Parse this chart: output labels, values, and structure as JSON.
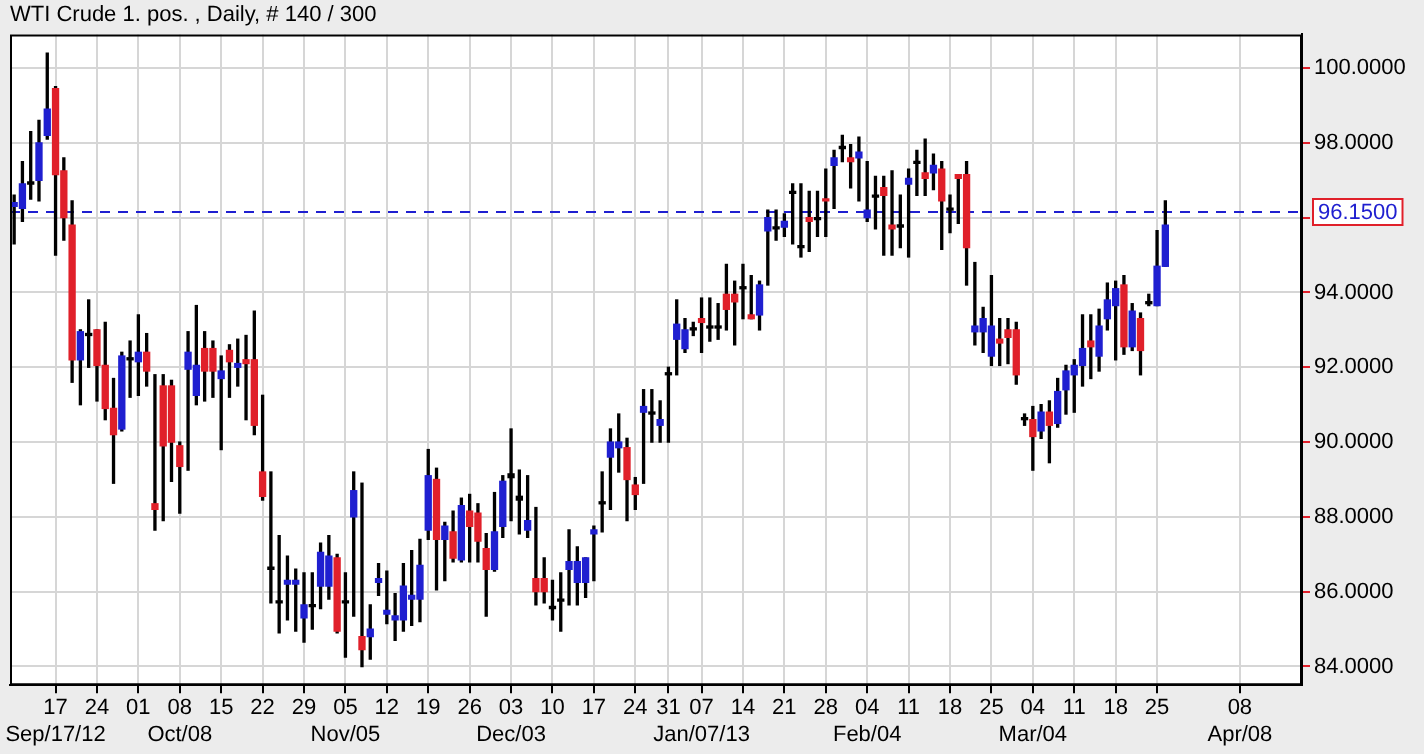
{
  "chart_data": {
    "type": "candlestick",
    "title": "WTI Crude 1. pos. , Daily, # 140 / 300",
    "categories": [
      null,
      null,
      null,
      null,
      null,
      "17\nSep/17/12",
      null,
      null,
      null,
      null,
      "24",
      null,
      null,
      null,
      null,
      "01",
      null,
      null,
      null,
      null,
      "08\nOct/08",
      null,
      null,
      null,
      null,
      "15",
      null,
      null,
      null,
      null,
      "22",
      null,
      null,
      null,
      null,
      "29",
      null,
      null,
      null,
      null,
      "05\nNov/05",
      null,
      null,
      null,
      null,
      "12",
      null,
      null,
      null,
      null,
      "19",
      null,
      null,
      null,
      null,
      "26",
      null,
      null,
      null,
      null,
      "03\nDec/03",
      null,
      null,
      null,
      null,
      "10",
      null,
      null,
      null,
      null,
      "17",
      null,
      null,
      null,
      null,
      "24",
      null,
      null,
      null,
      "31",
      null,
      null,
      null,
      "07\nJan/07/13",
      null,
      null,
      null,
      null,
      "14",
      null,
      null,
      null,
      null,
      "21",
      null,
      null,
      null,
      null,
      "28",
      null,
      null,
      null,
      null,
      "04\nFeb/04",
      null,
      null,
      null,
      null,
      "11",
      null,
      null,
      null,
      null,
      "18",
      null,
      null,
      null,
      null,
      "25",
      null,
      null,
      null,
      null,
      "04\nMar/04",
      null,
      null,
      null,
      null,
      "11",
      null,
      null,
      null,
      null,
      "18",
      null,
      null,
      null,
      null,
      "25",
      null,
      null,
      null,
      null,
      null,
      null,
      null,
      null,
      null,
      "08\nApr/08",
      null,
      null,
      null,
      null,
      null,
      null,
      null
    ],
    "ohlc": [
      [
        96.3,
        96.6,
        95.3,
        96.4
      ],
      [
        96.25,
        97.5,
        95.9,
        96.9
      ],
      [
        96.9,
        98.3,
        96.5,
        96.95
      ],
      [
        97.0,
        98.6,
        96.45,
        98.0
      ],
      [
        98.2,
        100.4,
        98.1,
        98.9
      ],
      [
        99.45,
        99.5,
        95.0,
        97.15
      ],
      [
        97.25,
        97.6,
        95.4,
        96.0
      ],
      [
        95.8,
        96.45,
        91.6,
        92.2
      ],
      [
        92.2,
        93.0,
        91.0,
        92.95
      ],
      [
        92.85,
        93.8,
        92.0,
        92.9
      ],
      [
        93.0,
        93.0,
        91.1,
        92.05
      ],
      [
        92.05,
        93.2,
        90.6,
        90.9
      ],
      [
        90.9,
        91.7,
        88.9,
        90.2
      ],
      [
        90.35,
        92.4,
        90.3,
        92.3
      ],
      [
        92.2,
        92.7,
        91.2,
        92.25
      ],
      [
        92.15,
        93.4,
        91.25,
        92.4
      ],
      [
        92.4,
        92.9,
        91.5,
        91.9
      ],
      [
        88.35,
        91.8,
        87.65,
        88.2
      ],
      [
        91.5,
        91.8,
        87.9,
        89.9
      ],
      [
        91.5,
        91.65,
        88.95,
        90.0
      ],
      [
        89.9,
        90.0,
        88.1,
        89.35
      ],
      [
        91.95,
        92.95,
        89.25,
        92.4
      ],
      [
        91.25,
        93.65,
        91.0,
        92.05
      ],
      [
        92.5,
        92.95,
        91.1,
        91.9
      ],
      [
        92.5,
        92.7,
        91.2,
        91.9
      ],
      [
        91.7,
        92.3,
        89.8,
        91.9
      ],
      [
        92.45,
        92.6,
        91.2,
        92.15
      ],
      [
        92.0,
        92.75,
        91.5,
        92.1
      ],
      [
        92.2,
        92.85,
        90.6,
        92.1
      ],
      [
        92.2,
        93.5,
        90.2,
        90.45
      ],
      [
        89.2,
        91.25,
        88.45,
        88.55
      ],
      [
        86.6,
        89.2,
        85.7,
        86.65
      ],
      [
        85.7,
        87.5,
        84.9,
        85.75
      ],
      [
        86.2,
        86.95,
        85.25,
        86.3
      ],
      [
        86.2,
        86.6,
        84.95,
        86.3
      ],
      [
        85.3,
        86.5,
        84.65,
        85.65
      ],
      [
        85.6,
        86.5,
        85.0,
        85.65
      ],
      [
        86.15,
        87.3,
        85.55,
        87.05
      ],
      [
        86.15,
        87.5,
        85.8,
        86.95
      ],
      [
        86.9,
        87.0,
        84.9,
        84.95
      ],
      [
        85.7,
        86.5,
        84.25,
        85.75
      ],
      [
        88.0,
        89.2,
        85.35,
        88.7
      ],
      [
        84.8,
        88.9,
        84.0,
        84.45
      ],
      [
        84.8,
        85.65,
        84.2,
        85.0
      ],
      [
        86.25,
        86.75,
        85.9,
        86.35
      ],
      [
        85.4,
        86.55,
        85.15,
        85.5
      ],
      [
        85.25,
        85.95,
        84.7,
        85.35
      ],
      [
        85.25,
        86.75,
        84.95,
        86.15
      ],
      [
        85.8,
        87.1,
        85.1,
        85.9
      ],
      [
        85.8,
        87.4,
        85.2,
        86.7
      ],
      [
        87.65,
        89.8,
        87.4,
        89.1
      ],
      [
        89.0,
        89.3,
        86.05,
        87.4
      ],
      [
        87.4,
        87.85,
        86.3,
        87.75
      ],
      [
        87.6,
        88.15,
        86.8,
        86.9
      ],
      [
        86.85,
        88.5,
        86.8,
        88.3
      ],
      [
        88.15,
        88.6,
        86.8,
        87.75
      ],
      [
        88.1,
        88.35,
        86.8,
        87.35
      ],
      [
        87.15,
        87.55,
        85.35,
        86.6
      ],
      [
        86.6,
        88.65,
        86.55,
        87.6
      ],
      [
        87.75,
        89.1,
        87.45,
        88.95
      ],
      [
        89.05,
        90.35,
        87.9,
        89.15
      ],
      [
        88.45,
        89.25,
        87.55,
        88.55
      ],
      [
        87.65,
        89.1,
        87.45,
        87.9
      ],
      [
        86.35,
        88.25,
        85.65,
        86.0
      ],
      [
        86.35,
        86.9,
        85.7,
        86.0
      ],
      [
        85.55,
        86.3,
        85.25,
        85.6
      ],
      [
        85.75,
        86.5,
        84.95,
        85.8
      ],
      [
        86.6,
        87.65,
        85.65,
        86.8
      ],
      [
        86.25,
        87.2,
        85.65,
        86.8
      ],
      [
        86.25,
        86.9,
        85.85,
        86.9
      ],
      [
        87.55,
        87.75,
        86.3,
        87.65
      ],
      [
        88.35,
        89.2,
        87.6,
        88.4
      ],
      [
        89.6,
        90.35,
        88.2,
        90.0
      ],
      [
        89.85,
        90.75,
        89.2,
        90.0
      ],
      [
        89.85,
        90.1,
        87.9,
        89.0
      ],
      [
        88.85,
        89.05,
        88.2,
        88.6
      ],
      [
        90.8,
        91.4,
        88.9,
        90.95
      ],
      [
        90.75,
        91.4,
        90.0,
        90.8
      ],
      [
        90.45,
        91.1,
        90.0,
        90.6
      ],
      [
        91.8,
        92.0,
        90.0,
        91.85
      ],
      [
        92.75,
        93.8,
        91.8,
        93.15
      ],
      [
        92.5,
        93.3,
        92.4,
        93.0
      ],
      [
        93.0,
        93.2,
        92.85,
        93.05
      ],
      [
        93.3,
        93.85,
        92.4,
        93.2
      ],
      [
        93.05,
        93.85,
        92.7,
        93.1
      ],
      [
        93.05,
        93.7,
        92.75,
        93.1
      ],
      [
        93.95,
        94.75,
        93.0,
        93.55
      ],
      [
        93.95,
        94.3,
        92.6,
        93.75
      ],
      [
        94.1,
        94.75,
        93.3,
        94.15
      ],
      [
        93.4,
        94.45,
        93.3,
        93.3
      ],
      [
        93.4,
        94.3,
        93.0,
        94.2
      ],
      [
        95.65,
        96.2,
        94.2,
        96.0
      ],
      [
        95.7,
        96.2,
        95.4,
        95.75
      ],
      [
        95.75,
        96.1,
        95.5,
        95.9
      ],
      [
        96.65,
        96.9,
        95.3,
        96.7
      ],
      [
        95.2,
        96.9,
        94.95,
        95.25
      ],
      [
        96.0,
        96.7,
        95.1,
        95.9
      ],
      [
        95.95,
        96.7,
        95.5,
        96.0
      ],
      [
        96.5,
        97.3,
        95.5,
        96.45
      ],
      [
        97.4,
        97.8,
        96.25,
        97.6
      ],
      [
        97.85,
        98.2,
        97.5,
        97.9
      ],
      [
        97.6,
        97.95,
        96.8,
        97.5
      ],
      [
        97.6,
        98.15,
        96.45,
        97.75
      ],
      [
        96.0,
        97.5,
        95.9,
        96.2
      ],
      [
        96.55,
        97.1,
        95.7,
        96.6
      ],
      [
        96.8,
        97.1,
        95.0,
        96.6
      ],
      [
        95.8,
        97.25,
        95.0,
        95.7
      ],
      [
        95.75,
        96.6,
        95.2,
        95.8
      ],
      [
        96.9,
        97.3,
        94.95,
        97.05
      ],
      [
        97.45,
        97.8,
        96.6,
        97.5
      ],
      [
        97.2,
        98.1,
        96.6,
        97.05
      ],
      [
        97.2,
        97.7,
        96.75,
        97.4
      ],
      [
        97.3,
        97.5,
        95.15,
        96.45
      ],
      [
        96.2,
        96.6,
        95.6,
        96.25
      ],
      [
        97.15,
        97.15,
        95.85,
        97.05
      ],
      [
        97.15,
        97.5,
        94.2,
        95.2
      ],
      [
        92.95,
        94.8,
        92.6,
        93.1
      ],
      [
        92.95,
        93.6,
        92.4,
        93.3
      ],
      [
        92.3,
        94.45,
        92.05,
        93.1
      ],
      [
        92.75,
        93.3,
        92.05,
        92.65
      ],
      [
        93.0,
        93.3,
        92.1,
        92.8
      ],
      [
        93.0,
        93.2,
        91.55,
        91.8
      ],
      [
        90.6,
        90.75,
        90.45,
        90.6
      ],
      [
        90.6,
        90.95,
        89.25,
        90.15
      ],
      [
        90.3,
        91.0,
        90.1,
        90.8
      ],
      [
        90.8,
        91.1,
        89.45,
        90.45
      ],
      [
        90.5,
        91.7,
        90.4,
        91.35
      ],
      [
        91.4,
        92.05,
        90.75,
        91.9
      ],
      [
        91.8,
        92.2,
        90.8,
        92.05
      ],
      [
        92.05,
        93.4,
        91.5,
        92.5
      ],
      [
        92.7,
        93.4,
        91.7,
        92.55
      ],
      [
        92.3,
        93.55,
        91.9,
        93.1
      ],
      [
        93.3,
        94.25,
        93.0,
        93.8
      ],
      [
        93.65,
        94.3,
        92.2,
        94.1
      ],
      [
        94.2,
        94.45,
        92.35,
        92.55
      ],
      [
        92.55,
        93.7,
        92.45,
        93.5
      ],
      [
        93.3,
        93.45,
        91.8,
        92.45
      ],
      [
        93.7,
        93.95,
        93.65,
        93.75
      ],
      [
        93.65,
        95.65,
        93.65,
        94.7
      ],
      [
        94.7,
        96.45,
        94.7,
        95.8
      ],
      null,
      null,
      null,
      null,
      null,
      null,
      null,
      null,
      null,
      null,
      null,
      null,
      null,
      null,
      null,
      null
    ],
    "colors": [
      "#1f1fd0",
      "#1f1fd0",
      "#000000",
      "#1f1fd0",
      "#1f1fd0",
      "#e0202a",
      "#e0202a",
      "#e0202a",
      "#1f1fd0",
      "#000000",
      "#e0202a",
      "#e0202a",
      "#e0202a",
      "#1f1fd0",
      "#000000",
      "#1f1fd0",
      "#e0202a",
      "#e0202a",
      "#e0202a",
      "#e0202a",
      "#e0202a",
      "#1f1fd0",
      "#1f1fd0",
      "#e0202a",
      "#e0202a",
      "#1f1fd0",
      "#e0202a",
      "#1f1fd0",
      "#e0202a",
      "#e0202a",
      "#e0202a",
      "#000000",
      "#000000",
      "#1f1fd0",
      "#1f1fd0",
      "#1f1fd0",
      "#000000",
      "#1f1fd0",
      "#1f1fd0",
      "#e0202a",
      "#000000",
      "#1f1fd0",
      "#e0202a",
      "#1f1fd0",
      "#1f1fd0",
      "#1f1fd0",
      "#1f1fd0",
      "#1f1fd0",
      "#1f1fd0",
      "#1f1fd0",
      "#1f1fd0",
      "#e0202a",
      "#1f1fd0",
      "#e0202a",
      "#1f1fd0",
      "#e0202a",
      "#e0202a",
      "#e0202a",
      "#1f1fd0",
      "#1f1fd0",
      "#000000",
      "#000000",
      "#1f1fd0",
      "#e0202a",
      "#e0202a",
      "#000000",
      "#000000",
      "#1f1fd0",
      "#1f1fd0",
      "#1f1fd0",
      "#1f1fd0",
      "#000000",
      "#1f1fd0",
      "#1f1fd0",
      "#e0202a",
      "#e0202a",
      "#1f1fd0",
      "#000000",
      "#1f1fd0",
      "#000000",
      "#1f1fd0",
      "#1f1fd0",
      "#000000",
      "#e0202a",
      "#000000",
      "#000000",
      "#e0202a",
      "#e0202a",
      "#000000",
      "#e0202a",
      "#1f1fd0",
      "#1f1fd0",
      "#000000",
      "#1f1fd0",
      "#000000",
      "#000000",
      "#e0202a",
      "#000000",
      "#e0202a",
      "#1f1fd0",
      "#000000",
      "#e0202a",
      "#1f1fd0",
      "#1f1fd0",
      "#000000",
      "#e0202a",
      "#e0202a",
      "#000000",
      "#1f1fd0",
      "#000000",
      "#e0202a",
      "#1f1fd0",
      "#e0202a",
      "#000000",
      "#e0202a",
      "#e0202a",
      "#1f1fd0",
      "#1f1fd0",
      "#1f1fd0",
      "#e0202a",
      "#e0202a",
      "#e0202a",
      "#000000",
      "#e0202a",
      "#1f1fd0",
      "#e0202a",
      "#1f1fd0",
      "#1f1fd0",
      "#1f1fd0",
      "#1f1fd0",
      "#e0202a",
      "#1f1fd0",
      "#1f1fd0",
      "#1f1fd0",
      "#e0202a",
      "#1f1fd0",
      "#e0202a",
      "#000000",
      "#1f1fd0",
      "#1f1fd0",
      null,
      null,
      null,
      null,
      null,
      null,
      null,
      null,
      null,
      null,
      null,
      null,
      null,
      null,
      null,
      null
    ],
    "ylim": [
      83.5,
      100.9
    ],
    "yticks": [
      {
        "value": 84,
        "label": "84.0000"
      },
      {
        "value": 86,
        "label": "86.0000"
      },
      {
        "value": 88,
        "label": "88.0000"
      },
      {
        "value": 90,
        "label": "90.0000"
      },
      {
        "value": 92,
        "label": "92.0000"
      },
      {
        "value": 94,
        "label": "94.0000"
      },
      {
        "value": 96,
        "label": null
      },
      {
        "value": 98,
        "label": "98.0000"
      },
      {
        "value": 100,
        "label": "100.0000"
      }
    ],
    "ref_lines": [
      {
        "axis": "y",
        "value": 96.15,
        "label": "96.1500",
        "color": "#1f1fd0",
        "line_style": "dashed"
      }
    ],
    "grid": true,
    "legend": false
  }
}
